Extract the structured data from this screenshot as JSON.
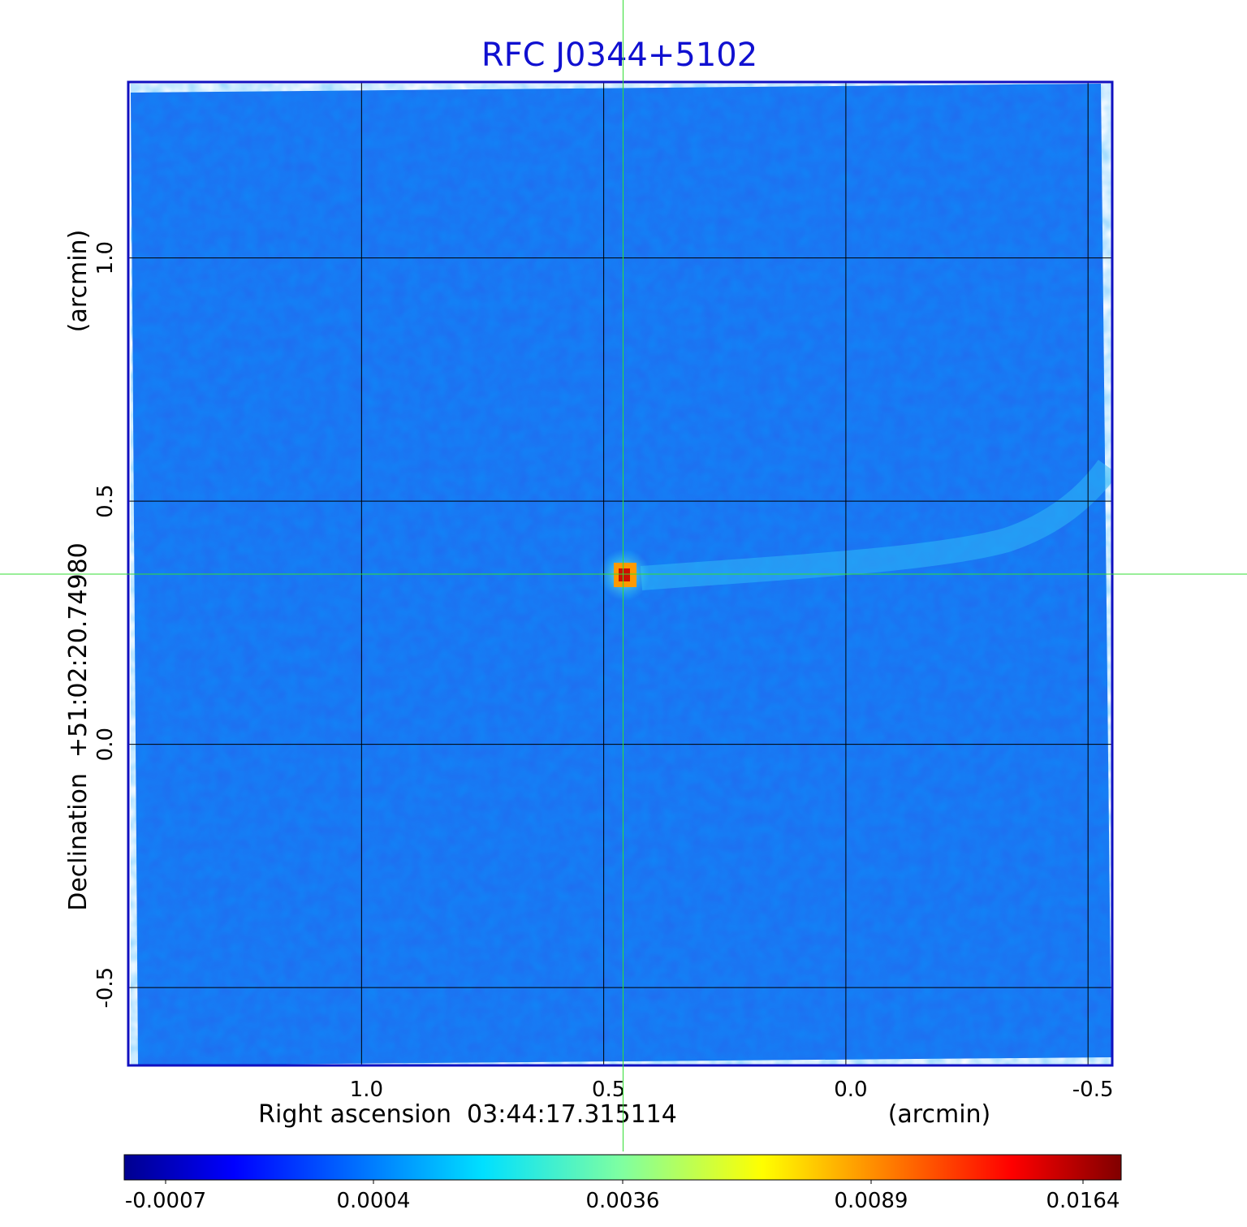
{
  "chart_data": {
    "type": "heatmap",
    "title": "RFC J0344+5102",
    "xlabel": "Right ascension  03:44:17.315114",
    "xunit": "(arcmin)",
    "ylabel": "Declination  +51:02:20.74980",
    "yunit": "(arcmin)",
    "x_ticks": [
      "1.0",
      "0.5",
      "0.0",
      "-0.5"
    ],
    "x_tick_values": [
      1.0,
      0.5,
      0.0,
      -0.5
    ],
    "y_ticks": [
      "1.0",
      "0.5",
      "0.0",
      "-0.5"
    ],
    "y_tick_values": [
      1.0,
      0.5,
      0.0,
      -0.5
    ],
    "xlim": [
      1.48,
      -0.55
    ],
    "ylim": [
      -0.66,
      1.36
    ],
    "grid": true,
    "crosshair": {
      "x": 0.46,
      "y": 0.35
    },
    "source_peak": {
      "x": 0.46,
      "y": 0.35,
      "value": 0.0164
    },
    "colorbar": {
      "colormap": "jet",
      "ticks": [
        "-0.0007",
        "0.0004",
        "0.0036",
        "0.0089",
        "0.0164"
      ],
      "range": [
        -0.0007,
        0.0164
      ]
    },
    "colors": {
      "title": "#1010d0",
      "frame": "#1010c0",
      "crosshair": "#33dd33",
      "grid": "#000000"
    }
  }
}
